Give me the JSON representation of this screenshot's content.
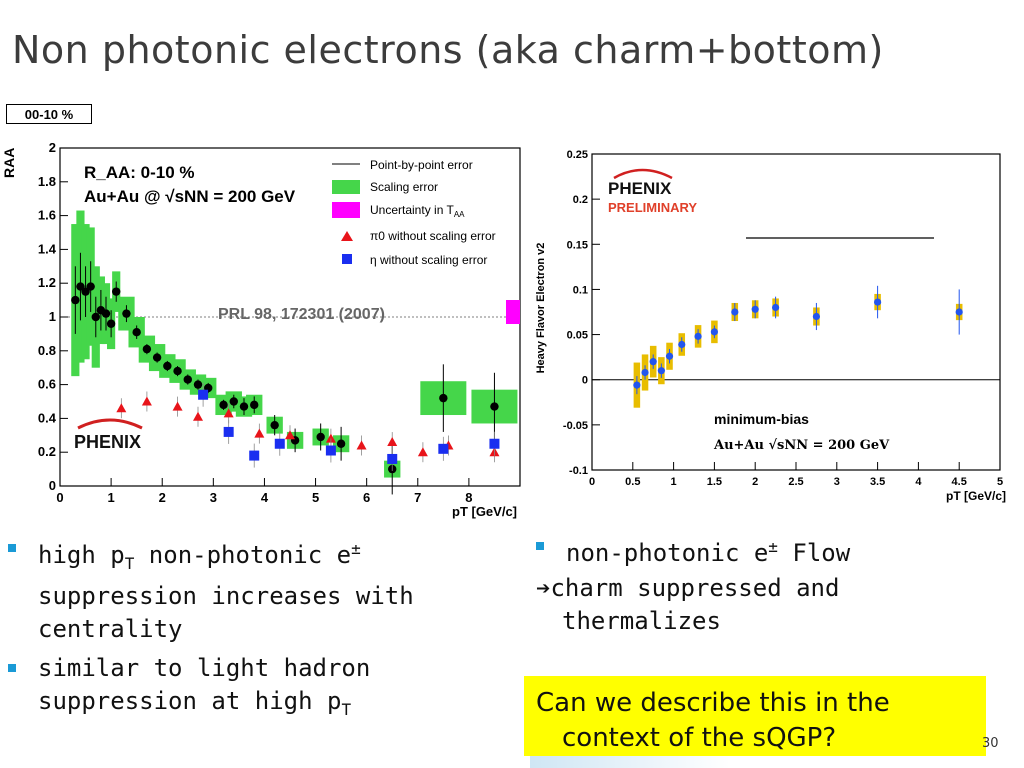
{
  "slide": {
    "title": "Non photonic electrons (aka charm+bottom)",
    "badge": "00-10 %",
    "page_number": "30"
  },
  "left_bullets": [
    {
      "text_a": "high p",
      "sub": "T",
      "text_b": " non-photonic e",
      "sup": "±",
      "text_c": " suppression increases with centrality"
    },
    {
      "text_a": "similar to light hadron suppression at high p",
      "sub": "T"
    }
  ],
  "right_text": {
    "bullet_a": "non-photonic e",
    "bullet_sup": "±",
    "bullet_b": "  Flow",
    "arrow": "➔",
    "line2": "charm suppressed and",
    "line3": "thermalizes"
  },
  "callout": {
    "line1": "Can we describe this in the",
    "line2": "context of the sQGP?"
  },
  "chart_data": [
    {
      "type": "scatter",
      "title": "R_AA: 0-10 %",
      "subtitle": "Au+Au @ √sNN = 200 GeV",
      "annotation": "PRL 98, 172301 (2007)",
      "logo": "PHENIX",
      "xlabel": "pT [GeV/c]",
      "ylabel": "RAA",
      "xlim": [
        0,
        9
      ],
      "ylim": [
        0,
        2
      ],
      "xticks": [
        "0",
        "1",
        "2",
        "3",
        "4",
        "5",
        "6",
        "7",
        "8"
      ],
      "yticks": [
        "0",
        "0.2",
        "0.4",
        "0.6",
        "0.8",
        "1",
        "1.2",
        "1.4",
        "1.6",
        "1.8",
        "2"
      ],
      "legend": [
        {
          "label": "Point-by-point error",
          "marker": "line"
        },
        {
          "label": "Scaling error",
          "marker": "green-box"
        },
        {
          "label": "Uncertainty in T",
          "sub": "AA",
          "marker": "magenta-box"
        },
        {
          "label": "π0 without scaling error",
          "marker": "red-triangle"
        },
        {
          "label": "η without scaling error",
          "marker": "blue-square"
        }
      ],
      "colors": {
        "electron": "#000000",
        "pi0": "#e8141a",
        "eta": "#1a2ef0",
        "scaling": "#45d64a",
        "taa": "#ff00ff"
      },
      "series": [
        {
          "name": "electrons",
          "x": [
            0.3,
            0.4,
            0.5,
            0.6,
            0.7,
            0.8,
            0.9,
            1.0,
            1.1,
            1.3,
            1.5,
            1.7,
            1.9,
            2.1,
            2.3,
            2.5,
            2.7,
            2.9,
            3.2,
            3.4,
            3.6,
            3.8,
            4.2,
            4.6,
            5.1,
            5.5,
            6.5,
            7.5,
            8.5
          ],
          "y": [
            1.1,
            1.18,
            1.15,
            1.18,
            1.0,
            1.04,
            1.02,
            0.96,
            1.15,
            1.02,
            0.91,
            0.81,
            0.76,
            0.71,
            0.68,
            0.63,
            0.6,
            0.58,
            0.48,
            0.5,
            0.47,
            0.48,
            0.36,
            0.27,
            0.29,
            0.25,
            0.1,
            0.52,
            0.47
          ],
          "err": [
            0.2,
            0.2,
            0.15,
            0.15,
            0.12,
            0.12,
            0.1,
            0.08,
            0.06,
            0.05,
            0.04,
            0.03,
            0.03,
            0.03,
            0.03,
            0.03,
            0.03,
            0.03,
            0.03,
            0.04,
            0.05,
            0.05,
            0.06,
            0.07,
            0.08,
            0.1,
            0.15,
            0.2,
            0.2
          ],
          "sys": [
            0.45,
            0.45,
            0.4,
            0.35,
            0.3,
            0.2,
            0.18,
            0.15,
            0.12,
            0.1,
            0.09,
            0.08,
            0.08,
            0.07,
            0.07,
            0.06,
            0.06,
            0.06,
            0.06,
            0.06,
            0.06,
            0.06,
            0.05,
            0.05,
            0.05,
            0.05,
            0.05,
            0.1,
            0.1
          ]
        },
        {
          "name": "pi0",
          "x": [
            1.2,
            1.7,
            2.3,
            2.7,
            3.3,
            3.9,
            4.5,
            5.3,
            5.9,
            6.5,
            7.1,
            7.6,
            8.5
          ],
          "y": [
            0.46,
            0.5,
            0.47,
            0.41,
            0.43,
            0.31,
            0.3,
            0.28,
            0.24,
            0.26,
            0.2,
            0.24,
            0.2
          ]
        },
        {
          "name": "eta",
          "x": [
            2.8,
            3.3,
            3.8,
            4.3,
            5.3,
            6.5,
            7.5,
            8.5
          ],
          "y": [
            0.54,
            0.32,
            0.18,
            0.25,
            0.21,
            0.16,
            0.22,
            0.25
          ]
        }
      ]
    },
    {
      "type": "scatter",
      "title": "minimum-bias",
      "subtitle": "Au+Au √sNN = 200 GeV",
      "logo": "PHENIX",
      "logo_note": "PRELIMINARY",
      "xlabel": "pT [GeV/c]",
      "ylabel": "Heavy Flavor Electron v2",
      "xlim": [
        0,
        5
      ],
      "ylim": [
        -0.1,
        0.25
      ],
      "xticks": [
        "0",
        "0.5",
        "1",
        "1.5",
        "2",
        "2.5",
        "3",
        "3.5",
        "4",
        "4.5",
        "5"
      ],
      "yticks": [
        "-0.1",
        "-0.05",
        "0",
        "0.05",
        "0.1",
        "0.15",
        "0.2",
        "0.25"
      ],
      "colors": {
        "points": "#2255ee",
        "sys": "#e8bd00"
      },
      "series": [
        {
          "name": "v2",
          "x": [
            0.55,
            0.65,
            0.75,
            0.85,
            0.95,
            1.1,
            1.3,
            1.5,
            1.75,
            2.0,
            2.25,
            2.75,
            3.5,
            4.5
          ],
          "y": [
            -0.006,
            0.008,
            0.02,
            0.01,
            0.026,
            0.039,
            0.048,
            0.053,
            0.075,
            0.078,
            0.08,
            0.07,
            0.086,
            0.075
          ],
          "err": [
            0.01,
            0.008,
            0.008,
            0.008,
            0.008,
            0.008,
            0.008,
            0.007,
            0.01,
            0.01,
            0.012,
            0.015,
            0.018,
            0.025
          ],
          "sys": [
            0.05,
            0.04,
            0.035,
            0.03,
            0.03,
            0.025,
            0.025,
            0.025,
            0.02,
            0.02,
            0.02,
            0.02,
            0.018,
            0.018
          ]
        }
      ]
    }
  ]
}
